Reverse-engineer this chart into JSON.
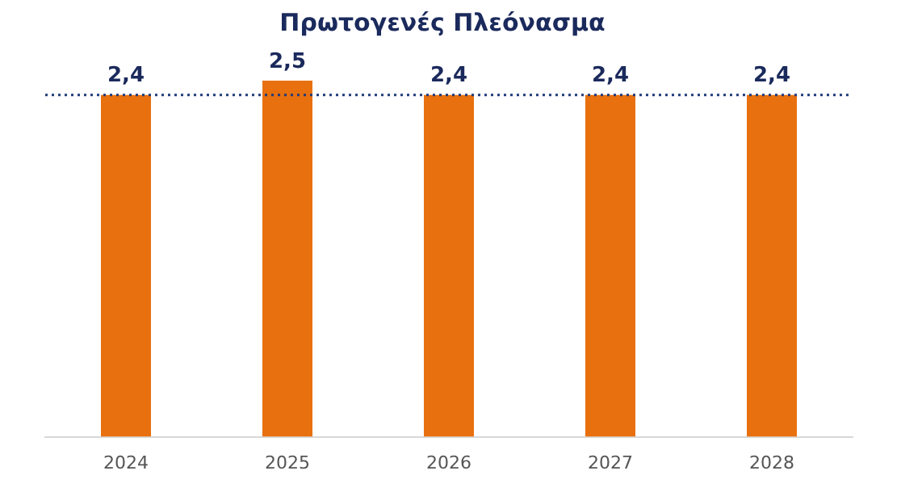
{
  "chart_data": {
    "type": "bar",
    "title": "Πρωτογενές Πλεόνασμα",
    "categories": [
      "2024",
      "2025",
      "2026",
      "2027",
      "2028"
    ],
    "values": [
      2.4,
      2.5,
      2.4,
      2.4,
      2.4
    ],
    "value_labels": [
      "2,4",
      "2,5",
      "2,4",
      "2,4",
      "2,4"
    ],
    "color": "#e8700f",
    "tick_labels": "x",
    "grid": false,
    "legend": false,
    "ref_lines": [
      {
        "axis": "y",
        "value": 2.4,
        "color": "#1f3a7a",
        "line_style": "dotted"
      }
    ]
  }
}
